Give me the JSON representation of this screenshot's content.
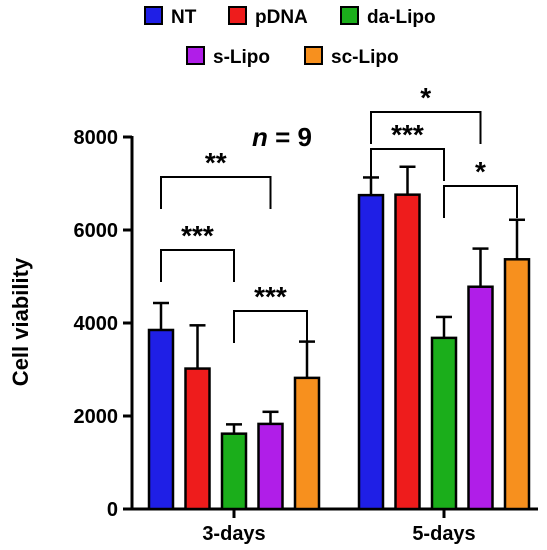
{
  "chart_data": {
    "type": "bar",
    "title": "",
    "xlabel": "",
    "ylabel": "Cell viability",
    "ylim": [
      0,
      8000
    ],
    "yticks": [
      0,
      2000,
      4000,
      6000,
      8000
    ],
    "grid": false,
    "legend_position": "top",
    "annotation": {
      "italic": "n",
      "rest": " = 9"
    },
    "categories": [
      "3-days",
      "5-days"
    ],
    "series": [
      {
        "name": "NT",
        "color": "#1f1fe6",
        "values": [
          3850,
          6750
        ],
        "errors": [
          580,
          380
        ]
      },
      {
        "name": "pDNA",
        "color": "#ee1c1c",
        "values": [
          3020,
          6760
        ],
        "errors": [
          930,
          600
        ]
      },
      {
        "name": "da-Lipo",
        "color": "#1bae1b",
        "values": [
          1620,
          3680
        ],
        "errors": [
          200,
          450
        ]
      },
      {
        "name": "s-Lipo",
        "color": "#b01ee8",
        "values": [
          1830,
          4780
        ],
        "errors": [
          260,
          820
        ]
      },
      {
        "name": "sc-Lipo",
        "color": "#f7901e",
        "values": [
          2820,
          5370
        ],
        "errors": [
          780,
          850
        ]
      }
    ],
    "significance": [
      {
        "group": 0,
        "from": 0,
        "to": 3,
        "label": "**"
      },
      {
        "group": 0,
        "from": 0,
        "to": 2,
        "label": "***"
      },
      {
        "group": 0,
        "from": 2,
        "to": 4,
        "label": "***"
      },
      {
        "group": 1,
        "from": 0,
        "to": 3,
        "label": "*"
      },
      {
        "group": 1,
        "from": 0,
        "to": 2,
        "label": "***"
      },
      {
        "group": 1,
        "from": 2,
        "to": 4,
        "label": "*"
      }
    ]
  }
}
